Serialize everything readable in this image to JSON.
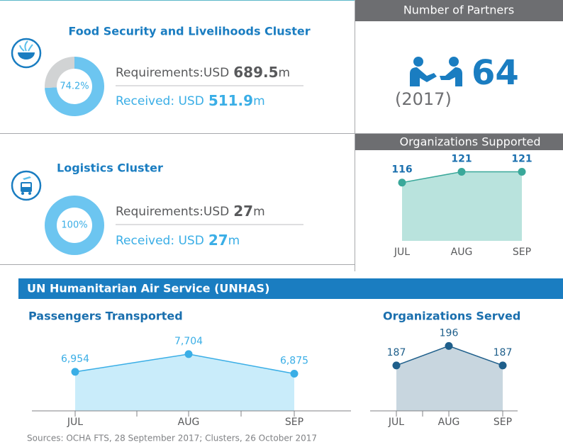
{
  "clusters": [
    {
      "title": "Food Security and Livelihoods Cluster",
      "requirements_label": "Requirements:USD",
      "requirements": 689.5,
      "unit": "m",
      "received_label": "Received: USD",
      "received": 511.9
    },
    {
      "title": "Logistics Cluster",
      "requirements_label": "Requirements:USD",
      "requirements": 27,
      "unit": "m",
      "received_label": "Received: USD",
      "received": 27
    }
  ],
  "partners": {
    "title": "Number of Partners",
    "value": 64,
    "year": "(2017)"
  },
  "section_title": "UN Humanitarian Air Service (UNHAS)",
  "sources": "Sources: OCHA FTS, 28 September 2017; Clusters, 26 October 2017",
  "chart_data": [
    {
      "type": "donut",
      "values": [
        74.2,
        25.8
      ],
      "value_labels": [
        "74.2%",
        null
      ],
      "colors": [
        "#6cc5f0",
        "#d1d3d4"
      ]
    },
    {
      "type": "donut",
      "values": [
        100,
        0
      ],
      "value_labels": [
        "100%",
        null
      ],
      "colors": [
        "#6cc5f0",
        "#d1d3d4"
      ]
    },
    {
      "type": "line",
      "title": "Organizations Supported",
      "categories": [
        "JUL",
        "AUG",
        "SEP"
      ],
      "values": [
        116,
        121,
        121
      ],
      "color": "#3aa89a",
      "ylim": [
        89,
        131
      ]
    },
    {
      "type": "line",
      "title": "Passengers Transported",
      "categories": [
        "JUL",
        "AUG",
        "SEP"
      ],
      "values": [
        6954,
        7704,
        6875
      ],
      "value_labels": [
        "6,954",
        "7,704",
        "6,875"
      ],
      "color": "#3aaee6",
      "ylim": [
        5300,
        8600
      ]
    },
    {
      "type": "line",
      "title": "Organizations Served",
      "categories": [
        "JUL",
        "AUG",
        "SEP"
      ],
      "values": [
        187,
        196,
        187
      ],
      "color": "#1f5f8b",
      "ylim": [
        166,
        202
      ]
    }
  ]
}
